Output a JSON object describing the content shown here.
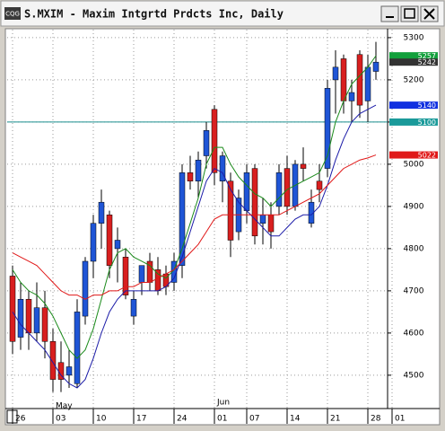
{
  "window": {
    "icon": "CQG"
  },
  "chart_data": {
    "type": "candlestick",
    "title": "S.MXIM - Maxim Intgrtd Prdcts Inc, Daily",
    "categories": [
      "26",
      null,
      null,
      null,
      null,
      "03",
      null,
      null,
      null,
      null,
      "10",
      null,
      null,
      null,
      null,
      "17",
      null,
      null,
      null,
      null,
      "24",
      null,
      null,
      null,
      null,
      "01",
      null,
      null,
      null,
      "07",
      null,
      null,
      null,
      null,
      "14",
      null,
      null,
      null,
      null,
      "21",
      null,
      null,
      null,
      null,
      "28",
      null,
      null,
      "01"
    ],
    "months": [
      {
        "category": 5,
        "label": "May"
      },
      {
        "category": 25,
        "label": "Jun"
      }
    ],
    "open": [
      4735,
      4590,
      4680,
      4600,
      4660,
      4580,
      4530,
      4500,
      4480,
      4640,
      4770,
      4860,
      4880,
      4800,
      4780,
      4640,
      4720,
      4770,
      4750,
      4740,
      4720,
      4760,
      4980,
      4960,
      5020,
      5130,
      4960,
      4960,
      4840,
      4890,
      4990,
      4860,
      4880,
      4900,
      4990,
      4900,
      5000,
      4860,
      4960,
      4990,
      5200,
      5250,
      5150,
      5260,
      5150,
      5220,
      null,
      null
    ],
    "high": [
      4760,
      4720,
      4700,
      4720,
      4700,
      4610,
      4580,
      4560,
      4680,
      4780,
      4880,
      4940,
      4890,
      4850,
      4800,
      4700,
      4760,
      4790,
      4780,
      4760,
      4790,
      5000,
      5020,
      5030,
      5100,
      5140,
      5030,
      4980,
      4940,
      5000,
      5000,
      4920,
      4910,
      5000,
      5020,
      5010,
      5040,
      4940,
      5000,
      5200,
      5270,
      5260,
      5200,
      5270,
      5260,
      5290,
      null,
      null
    ],
    "low": [
      4550,
      4560,
      4560,
      4580,
      4540,
      4460,
      4460,
      4470,
      4470,
      4620,
      4730,
      4800,
      4730,
      4720,
      4680,
      4620,
      4690,
      4700,
      4690,
      4690,
      4700,
      4730,
      4940,
      4920,
      4990,
      4950,
      4910,
      4780,
      4820,
      4860,
      4810,
      4810,
      4800,
      4880,
      4880,
      4890,
      4960,
      4850,
      4910,
      4970,
      5120,
      5120,
      5100,
      5110,
      5100,
      5200,
      null,
      null
    ],
    "close": [
      4580,
      4680,
      4600,
      4660,
      4580,
      4490,
      4490,
      4520,
      4650,
      4770,
      4860,
      4910,
      4760,
      4820,
      4690,
      4680,
      4760,
      4720,
      4700,
      4710,
      4770,
      4980,
      4960,
      5010,
      5080,
      4980,
      5020,
      4820,
      4920,
      4980,
      4830,
      4880,
      4840,
      4980,
      4900,
      5000,
      4990,
      4910,
      4940,
      5180,
      5230,
      5150,
      5170,
      5140,
      5230,
      5242,
      null,
      null
    ],
    "up_color": "#1f55d6",
    "down_color": "#d81f1f",
    "series": [
      {
        "color": "#1a8a1a",
        "values": [
          4750,
          4720,
          4700,
          4690,
          4670,
          4640,
          4600,
          4560,
          4540,
          4560,
          4610,
          4680,
          4750,
          4790,
          4800,
          4780,
          4770,
          4760,
          4740,
          4730,
          4750,
          4800,
          4860,
          4920,
          5000,
          5040,
          5040,
          5000,
          4970,
          4950,
          4930,
          4920,
          4900,
          4920,
          4940,
          4950,
          4960,
          4970,
          4980,
          5020,
          5100,
          5150,
          5190,
          5210,
          5230,
          5257,
          null,
          null
        ]
      },
      {
        "color": "#1c1ca8",
        "values": [
          4650,
          4620,
          4600,
          4580,
          4560,
          4530,
          4500,
          4480,
          4470,
          4490,
          4540,
          4600,
          4650,
          4680,
          4700,
          4700,
          4700,
          4700,
          4700,
          4710,
          4730,
          4780,
          4840,
          4900,
          4960,
          4990,
          4980,
          4940,
          4910,
          4890,
          4870,
          4850,
          4830,
          4830,
          4850,
          4870,
          4880,
          4880,
          4900,
          4950,
          5010,
          5060,
          5100,
          5120,
          5130,
          5140,
          null,
          null
        ]
      },
      {
        "color": "#e01818",
        "values": [
          4790,
          4780,
          4770,
          4760,
          4740,
          4720,
          4700,
          4690,
          4690,
          4680,
          4690,
          4690,
          4700,
          4700,
          4710,
          4710,
          4720,
          4720,
          4730,
          4740,
          4750,
          4770,
          4790,
          4810,
          4840,
          4870,
          4880,
          4880,
          4880,
          4880,
          4880,
          4880,
          4880,
          4880,
          4890,
          4900,
          4910,
          4920,
          4930,
          4950,
          4970,
          4990,
          5000,
          5010,
          5015,
          5022,
          null,
          null
        ]
      }
    ],
    "hline": {
      "value": 5100,
      "color": "#1a8f8f"
    },
    "price_tags": [
      {
        "value": 5257,
        "color": "#13a03c"
      },
      {
        "value": 5242,
        "color": "#333333"
      },
      {
        "value": 5140,
        "color": "#1030e0"
      },
      {
        "value": 5100,
        "color": "#1a9a9a"
      },
      {
        "value": 5022,
        "color": "#e01818"
      }
    ],
    "ylim": [
      4421,
      5319
    ],
    "yticks": [
      4500,
      4600,
      4700,
      4800,
      4900,
      5000,
      5100,
      5200,
      5300
    ],
    "grid": true
  }
}
